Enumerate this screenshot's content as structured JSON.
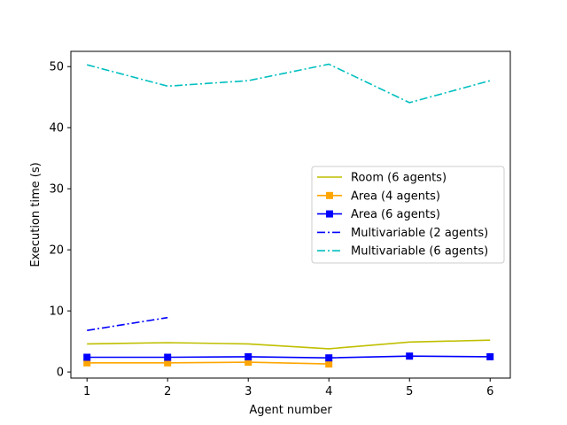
{
  "chart_data": {
    "type": "line",
    "title": "",
    "xlabel": "Agent number",
    "ylabel": "Execution time (s)",
    "xlim": [
      0.8,
      6.25
    ],
    "ylim": [
      -1,
      52.5
    ],
    "xticks": [
      1,
      2,
      3,
      4,
      5,
      6
    ],
    "yticks": [
      0,
      10,
      20,
      30,
      40,
      50
    ],
    "grid": false,
    "legend_position": "center-right",
    "series": [
      {
        "name": "Room (6 agents)",
        "color": "#bfbf00",
        "linestyle": "solid",
        "marker": "none",
        "x": [
          1,
          2,
          3,
          4,
          5,
          6
        ],
        "y": [
          4.6,
          4.8,
          4.6,
          3.8,
          4.9,
          5.2
        ]
      },
      {
        "name": "Area (4 agents)",
        "color": "#ffa500",
        "linestyle": "solid",
        "marker": "square",
        "x": [
          1,
          2,
          3,
          4
        ],
        "y": [
          1.5,
          1.5,
          1.6,
          1.3
        ]
      },
      {
        "name": "Area (6 agents)",
        "color": "#0000ff",
        "linestyle": "solid",
        "marker": "square",
        "x": [
          1,
          2,
          3,
          4,
          5,
          6
        ],
        "y": [
          2.4,
          2.4,
          2.5,
          2.3,
          2.6,
          2.5
        ]
      },
      {
        "name": "Multivariable (2 agents)",
        "color": "#0000ff",
        "linestyle": "dashdot",
        "marker": "none",
        "x": [
          1,
          2
        ],
        "y": [
          6.8,
          8.9
        ]
      },
      {
        "name": "Multivariable (6 agents)",
        "color": "#00bfbf",
        "linestyle": "dashdot",
        "marker": "none",
        "x": [
          1,
          2,
          3,
          4,
          5,
          6
        ],
        "y": [
          50.3,
          46.8,
          47.7,
          50.4,
          44.1,
          47.7
        ]
      }
    ]
  }
}
